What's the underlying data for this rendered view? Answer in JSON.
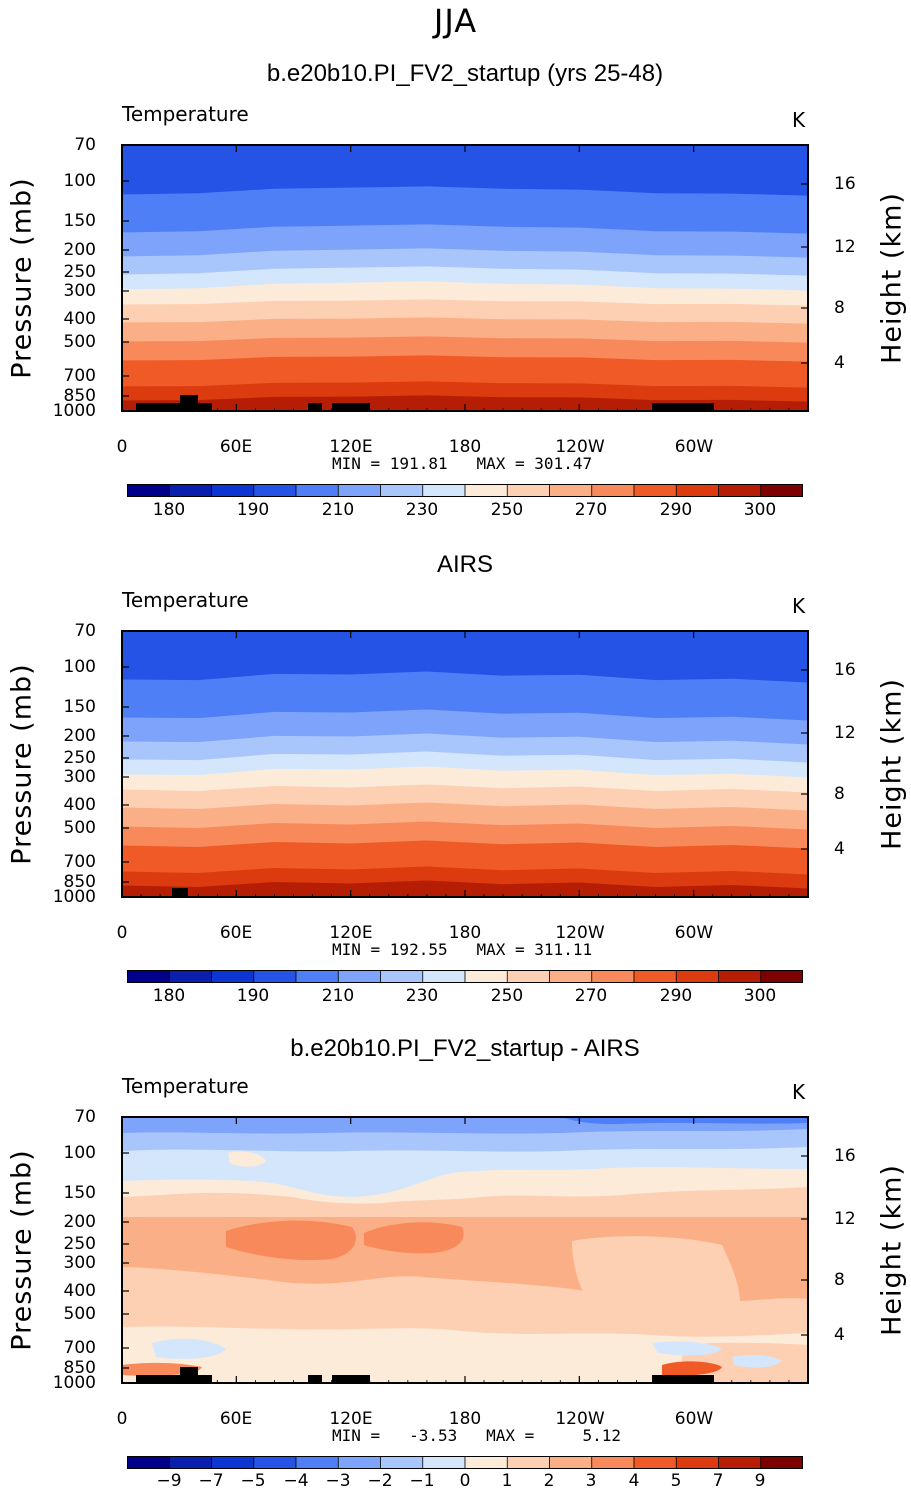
{
  "figure_title": "JJA",
  "chart_data": [
    {
      "type": "contour",
      "title": "b.e20b10.PI_FV2_startup (yrs 25-48)",
      "variable": "Temperature",
      "units": "K",
      "ylabel": "Pressure (mb)",
      "ylabel_right": "Height (km)",
      "pressure_ticks": [
        "70",
        "100",
        "150",
        "200",
        "250",
        "300",
        "400",
        "500",
        "700",
        "850",
        "1000"
      ],
      "height_ticks": [
        "16",
        "12",
        "8",
        "4"
      ],
      "x_ticks": [
        "0",
        "60E",
        "120E",
        "180",
        "120W",
        "60W"
      ],
      "stats_text": "MIN = 191.81   MAX = 301.47",
      "colorbar_labels": [
        "180",
        "190",
        "210",
        "230",
        "250",
        "270",
        "290",
        "300"
      ],
      "levels": [
        180,
        185,
        190,
        200,
        210,
        220,
        230,
        240,
        250,
        260,
        270,
        280,
        290,
        295,
        300
      ]
    },
    {
      "type": "contour",
      "title": "AIRS",
      "variable": "Temperature",
      "units": "K",
      "ylabel": "Pressure (mb)",
      "ylabel_right": "Height (km)",
      "pressure_ticks": [
        "70",
        "100",
        "150",
        "200",
        "250",
        "300",
        "400",
        "500",
        "700",
        "850",
        "1000"
      ],
      "height_ticks": [
        "16",
        "12",
        "8",
        "4"
      ],
      "x_ticks": [
        "0",
        "60E",
        "120E",
        "180",
        "120W",
        "60W"
      ],
      "stats_text": "MIN = 192.55   MAX = 311.11",
      "colorbar_labels": [
        "180",
        "190",
        "210",
        "230",
        "250",
        "270",
        "290",
        "300"
      ],
      "levels": [
        180,
        185,
        190,
        200,
        210,
        220,
        230,
        240,
        250,
        260,
        270,
        280,
        290,
        295,
        300
      ]
    },
    {
      "type": "contour",
      "title": "b.e20b10.PI_FV2_startup - AIRS",
      "variable": "Temperature",
      "units": "K",
      "ylabel": "Pressure (mb)",
      "ylabel_right": "Height (km)",
      "pressure_ticks": [
        "70",
        "100",
        "150",
        "200",
        "250",
        "300",
        "400",
        "500",
        "700",
        "850",
        "1000"
      ],
      "height_ticks": [
        "16",
        "12",
        "8",
        "4"
      ],
      "x_ticks": [
        "0",
        "60E",
        "120E",
        "180",
        "120W",
        "60W"
      ],
      "stats_text": "MIN =   -3.53   MAX =     5.12",
      "colorbar_labels": [
        "−9",
        "−7",
        "−5",
        "−4",
        "−3",
        "−2",
        "−1",
        "0",
        "1",
        "2",
        "3",
        "4",
        "5",
        "7",
        "9"
      ],
      "levels": [
        -9,
        -7,
        -5,
        -4,
        -3,
        -2,
        -1,
        0,
        1,
        2,
        3,
        4,
        5,
        7,
        9
      ]
    }
  ],
  "colors": {
    "palette": [
      "#00008b",
      "#0a1fae",
      "#0b36d2",
      "#2453e6",
      "#4f7ff6",
      "#7da4fa",
      "#a9c6fc",
      "#d4e6fb",
      "#fdebd9",
      "#fdcfb3",
      "#fbaf86",
      "#f7895b",
      "#ef5a26",
      "#dc3a0f",
      "#b51e05",
      "#7c0202"
    ],
    "land": "#000000"
  }
}
